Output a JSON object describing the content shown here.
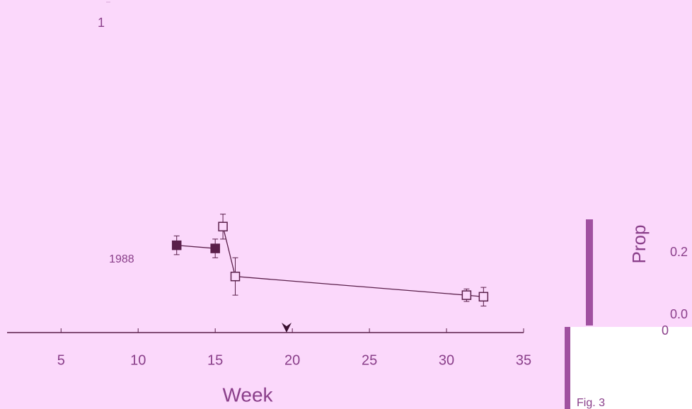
{
  "chart_data": {
    "type": "line",
    "xlabel": "Week",
    "xlim": [
      1.5,
      35
    ],
    "xticks": [
      5,
      10,
      15,
      20,
      25,
      30,
      35
    ],
    "ylim": [
      -0.06,
      1.0
    ],
    "yticks": [
      1.0
    ],
    "series": [
      {
        "name": "1988",
        "color": "#5a1f4a",
        "marker": "filled",
        "x": [
          12.5,
          15
        ],
        "values": [
          0.22,
          0.21
        ],
        "errors": [
          0.03,
          0.03
        ]
      },
      {
        "color": "#5a1f4a",
        "marker": "open",
        "x": [
          15.5,
          16.3,
          31.3,
          32.4
        ],
        "values": [
          0.28,
          0.12,
          0.06,
          0.055
        ],
        "errors": [
          0.04,
          0.06,
          0.02,
          0.03
        ]
      }
    ]
  },
  "right_panel": {
    "ylabel": "Prop",
    "ticks": [
      "0.2",
      "0.0",
      "0"
    ]
  },
  "caption": "Fig. 3"
}
